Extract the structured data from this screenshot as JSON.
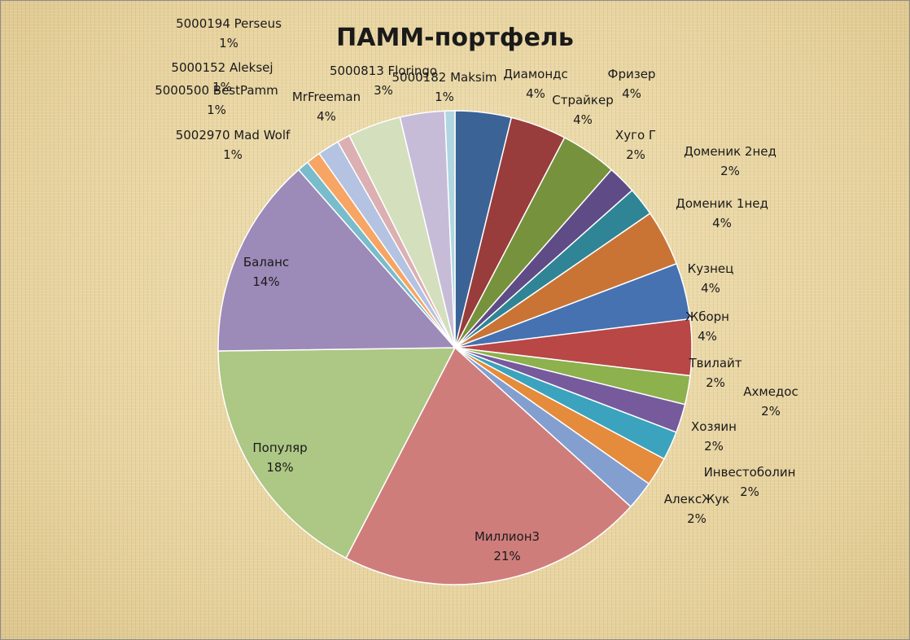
{
  "chart_data": {
    "type": "pie",
    "title": "ПАММ-портфель",
    "slices": [
      {
        "name": "Диамондс",
        "label": "4%",
        "value": 3.9,
        "color": "#3b6396"
      },
      {
        "name": "Фризер",
        "label": "4%",
        "value": 3.9,
        "color": "#983d3b"
      },
      {
        "name": "Страйкер",
        "label": "4%",
        "value": 3.9,
        "color": "#77923c"
      },
      {
        "name": "Хуго Г",
        "label": "2%",
        "value": 2.0,
        "color": "#5f4b85"
      },
      {
        "name": "Доменик 2нед",
        "label": "2%",
        "value": 2.0,
        "color": "#2f8596"
      },
      {
        "name": "Доменик 1нед",
        "label": "4%",
        "value": 3.9,
        "color": "#c97435"
      },
      {
        "name": "Кузнец",
        "label": "4%",
        "value": 3.9,
        "color": "#4672b2"
      },
      {
        "name": "Жборн",
        "label": "4%",
        "value": 3.9,
        "color": "#b84746"
      },
      {
        "name": "Твилайт",
        "label": "2%",
        "value": 2.0,
        "color": "#8cb14d"
      },
      {
        "name": "Ахмедос",
        "label": "2%",
        "value": 2.0,
        "color": "#765a9c"
      },
      {
        "name": "Хозяин",
        "label": "2%",
        "value": 2.0,
        "color": "#3ba3bd"
      },
      {
        "name": "Инвестоболин",
        "label": "2%",
        "value": 2.0,
        "color": "#e58b3c"
      },
      {
        "name": "АлексЖук",
        "label": "2%",
        "value": 2.0,
        "color": "#839fd0"
      },
      {
        "name": "Миллион3",
        "label": "21%",
        "value": 21.3,
        "color": "#cf7d7b"
      },
      {
        "name": "Популяр",
        "label": "18%",
        "value": 17.5,
        "color": "#adc784"
      },
      {
        "name": "Баланс",
        "label": "14%",
        "value": 14.0,
        "color": "#9c8ab8"
      },
      {
        "name": "5002970 Mad Wolf",
        "label": "1%",
        "value": 0.8,
        "color": "#79bccb"
      },
      {
        "name": "5000500 BestPamm",
        "label": "1%",
        "value": 1.0,
        "color": "#f6a565"
      },
      {
        "name": "5000152 Aleksej",
        "label": "1%",
        "value": 1.5,
        "color": "#b3c3e1"
      },
      {
        "name": "5000194 Perseus",
        "label": "1%",
        "value": 0.9,
        "color": "#dcb0b3"
      },
      {
        "name": "MrFreeman",
        "label": "4%",
        "value": 3.7,
        "color": "#d3dfbd"
      },
      {
        "name": "5000813 Floringo",
        "label": "3%",
        "value": 3.1,
        "color": "#c7bcd8"
      },
      {
        "name": "5000182 Maksim",
        "label": "1%",
        "value": 0.7,
        "color": "#b0d6e1"
      }
    ]
  }
}
